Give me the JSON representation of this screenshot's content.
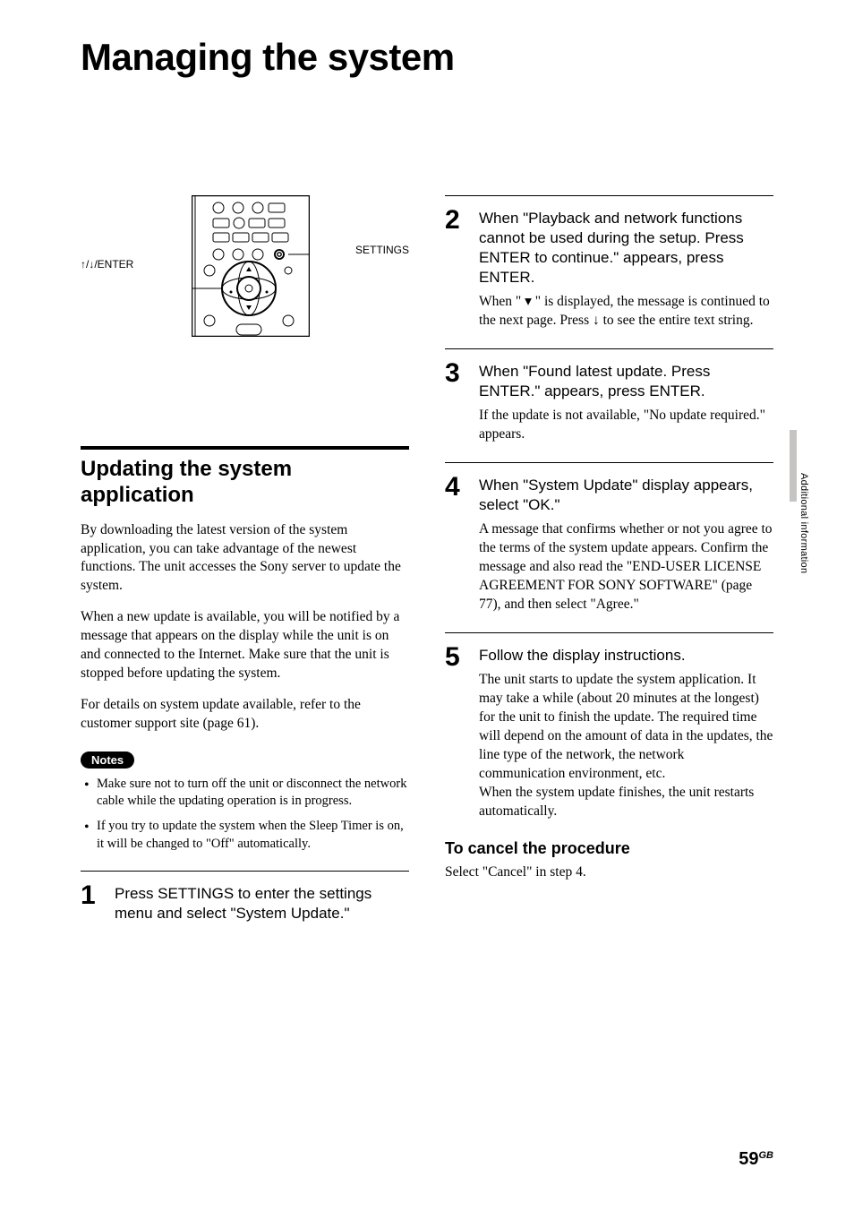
{
  "page_title": "Managing the system",
  "illustration": {
    "left_label": "↑/↓/ENTER",
    "right_label": "SETTINGS"
  },
  "section": {
    "heading": "Updating the system application",
    "para1": "By downloading the latest version of the system application, you can take advantage of the newest functions. The unit accesses the Sony server to update the system.",
    "para2": "When a new update is available, you will be notified by a message that appears on the display while the unit is on and connected to the Internet. Make sure that the unit is stopped before updating the system.",
    "para3": "For details on system update available, refer to the customer support site (page 61).",
    "notes_label": "Notes",
    "notes": [
      "Make sure not to turn off the unit or disconnect the network cable while the updating operation is in progress.",
      "If you try to update the system when the Sleep Timer is on, it will be changed to \"Off\" automatically."
    ]
  },
  "left_steps": [
    {
      "num": "1",
      "title": "Press SETTINGS to enter the settings menu and select \"System Update.\"",
      "desc": ""
    }
  ],
  "right_steps": [
    {
      "num": "2",
      "title": "When \"Playback and network functions cannot be used during the setup. Press ENTER to continue.\" appears, press ENTER.",
      "desc": "When \" ▾ \" is displayed, the message is continued to the next page. Press ↓ to see the entire text string."
    },
    {
      "num": "3",
      "title": "When \"Found latest update. Press ENTER.\" appears, press ENTER.",
      "desc": "If the update is not available, \"No update required.\" appears."
    },
    {
      "num": "4",
      "title": "When \"System Update\" display appears, select \"OK.\"",
      "desc": "A message that confirms whether or not you agree to the terms of the system update appears. Confirm the message and also read the \"END-USER LICENSE AGREEMENT FOR SONY SOFTWARE\" (page 77), and then select \"Agree.\""
    },
    {
      "num": "5",
      "title": "Follow the display instructions.",
      "desc": "The unit starts to update the system application. It may take a while (about 20 minutes at the longest) for the unit to finish the update. The required time will depend on the amount of data in the updates, the line type of the network, the network communication environment, etc.\nWhen the system update finishes, the unit restarts automatically."
    }
  ],
  "cancel": {
    "heading": "To cancel the procedure",
    "text": "Select \"Cancel\" in step 4."
  },
  "side_tab": "Additional information",
  "page_number": "59",
  "page_suffix": "GB",
  "colors": {
    "text": "#000000",
    "bg": "#ffffff",
    "tab": "#c5c4c2"
  },
  "typography": {
    "title_fontsize": 42,
    "heading_fontsize": 24,
    "body_fontsize": 15.5,
    "step_num_fontsize": 30,
    "step_title_fontsize": 17
  }
}
